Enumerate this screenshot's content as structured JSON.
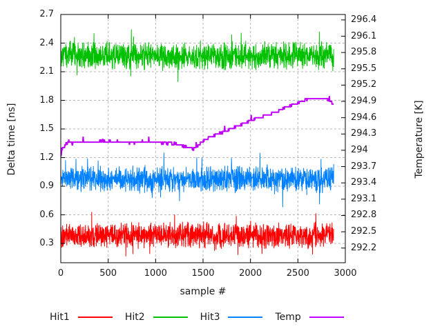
{
  "chart_data": {
    "type": "line",
    "title": "",
    "xlabel": "sample #",
    "ylabel_left": "Delta time [ns]",
    "ylabel_right": "Temperature [K]",
    "x_range": [
      0,
      3000
    ],
    "x_data_max": 2880,
    "x_ticks": [
      0,
      500,
      1000,
      1500,
      2000,
      2500,
      3000
    ],
    "y_left_range": [
      0.098,
      2.7
    ],
    "y_left_ticks": [
      0.3,
      0.6,
      0.9,
      1.2,
      1.5,
      1.8,
      2.1,
      2.4,
      2.7
    ],
    "y_right_range": [
      291.93,
      296.5
    ],
    "y_right_ticks": [
      292.2,
      292.5,
      292.8,
      293.1,
      293.4,
      293.7,
      294,
      294.3,
      294.6,
      294.9,
      295.2,
      295.5,
      295.8,
      296.1,
      296.4
    ],
    "grid": true,
    "grid_color": "#b4b4b4",
    "border_color": "#000000",
    "background": "#ffffff",
    "legend_position": "below-plot",
    "series": [
      {
        "name": "Hit1",
        "color": "#ff0000",
        "axis": "left",
        "style": "noisy",
        "mean": 0.385,
        "half_band": 0.155,
        "spike_prob": 0.013,
        "spike_extra": 0.18,
        "clamp": [
          0.105,
          0.63
        ],
        "seed": 101,
        "approx_range": [
          0.1,
          0.62
        ]
      },
      {
        "name": "Hit2",
        "color": "#00c000",
        "axis": "left",
        "style": "noisy",
        "mean": 2.27,
        "half_band": 0.165,
        "spike_prob": 0.012,
        "spike_extra": 0.18,
        "clamp": [
          1.98,
          2.56
        ],
        "seed": 202,
        "approx_range": [
          1.99,
          2.53
        ]
      },
      {
        "name": "Hit3",
        "color": "#0080ff",
        "axis": "left",
        "style": "noisy",
        "mean": 0.975,
        "half_band": 0.155,
        "spike_prob": 0.012,
        "spike_extra": 0.18,
        "clamp": [
          0.68,
          1.28
        ],
        "seed": 303,
        "extra_spikes": [
          [
            2100,
            1.25
          ]
        ],
        "approx_range": [
          0.69,
          1.25
        ]
      },
      {
        "name": "Temp",
        "color": "#c000ff",
        "axis": "right",
        "style": "step",
        "quantize_K": 0.05,
        "seed": 404,
        "keypoints": [
          [
            0,
            293.9
          ],
          [
            25,
            294.05
          ],
          [
            60,
            294.12
          ],
          [
            150,
            294.15
          ],
          [
            300,
            294.16
          ],
          [
            450,
            294.17
          ],
          [
            600,
            294.15
          ],
          [
            750,
            294.13
          ],
          [
            900,
            294.15
          ],
          [
            1050,
            294.14
          ],
          [
            1200,
            294.12
          ],
          [
            1300,
            294.07
          ],
          [
            1400,
            294.03
          ],
          [
            1460,
            294.1
          ],
          [
            1520,
            294.2
          ],
          [
            1600,
            294.26
          ],
          [
            1700,
            294.33
          ],
          [
            1800,
            294.4
          ],
          [
            1900,
            294.47
          ],
          [
            2000,
            294.55
          ],
          [
            2100,
            294.6
          ],
          [
            2200,
            294.66
          ],
          [
            2300,
            294.73
          ],
          [
            2400,
            294.81
          ],
          [
            2500,
            294.88
          ],
          [
            2600,
            294.93
          ],
          [
            2700,
            294.96
          ],
          [
            2780,
            294.96
          ],
          [
            2830,
            294.92
          ],
          [
            2880,
            294.83
          ]
        ]
      }
    ]
  },
  "legend": {
    "items": [
      {
        "label": "Hit1",
        "color": "#ff0000"
      },
      {
        "label": "Hit2",
        "color": "#00c000"
      },
      {
        "label": "Hit3",
        "color": "#0080ff"
      },
      {
        "label": "Temp",
        "color": "#c000ff"
      }
    ]
  }
}
